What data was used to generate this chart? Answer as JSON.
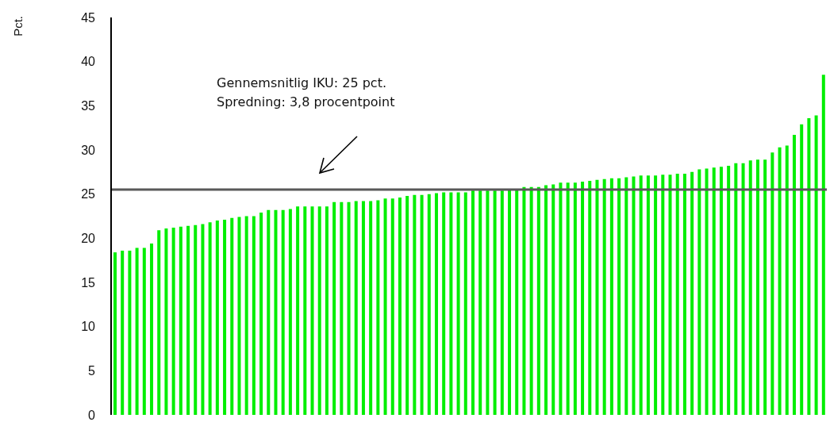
{
  "chart_data": {
    "type": "bar",
    "ylabel": "Pct.",
    "categories": [
      null,
      null,
      null,
      null,
      null,
      null,
      null,
      null,
      null,
      null,
      null,
      null,
      null,
      null,
      null,
      null,
      null,
      null,
      null,
      null,
      null,
      null,
      null,
      null,
      null,
      null,
      null,
      null,
      null,
      null,
      null,
      null,
      null,
      null,
      null,
      null,
      null,
      null,
      null,
      null,
      null,
      null,
      null,
      null,
      null,
      null,
      null,
      null,
      null,
      null,
      null,
      null,
      null,
      null,
      null,
      null,
      null,
      null,
      null,
      null,
      null,
      null,
      null,
      null,
      null,
      null,
      null,
      null,
      null,
      null,
      null,
      null,
      null,
      null,
      null,
      null,
      null,
      null,
      null,
      null,
      null,
      null,
      null,
      null,
      null,
      null,
      null,
      null,
      null,
      null,
      null,
      null,
      null,
      null,
      null,
      null,
      null,
      null
    ],
    "values": [
      18.4,
      18.6,
      18.6,
      18.9,
      18.9,
      19.4,
      20.9,
      21.1,
      21.2,
      21.3,
      21.4,
      21.5,
      21.6,
      21.8,
      22.0,
      22.1,
      22.3,
      22.4,
      22.5,
      22.5,
      22.9,
      23.2,
      23.2,
      23.2,
      23.3,
      23.6,
      23.6,
      23.6,
      23.6,
      23.6,
      24.1,
      24.1,
      24.1,
      24.2,
      24.2,
      24.2,
      24.3,
      24.5,
      24.5,
      24.6,
      24.8,
      24.9,
      24.9,
      25.0,
      25.1,
      25.2,
      25.2,
      25.2,
      25.2,
      25.4,
      25.4,
      25.4,
      25.4,
      25.4,
      25.6,
      25.6,
      25.8,
      25.8,
      25.8,
      26.0,
      26.1,
      26.3,
      26.3,
      26.3,
      26.4,
      26.5,
      26.6,
      26.7,
      26.8,
      26.8,
      26.9,
      27.0,
      27.1,
      27.1,
      27.1,
      27.2,
      27.2,
      27.3,
      27.3,
      27.5,
      27.8,
      27.9,
      28.0,
      28.1,
      28.2,
      28.5,
      28.5,
      28.8,
      28.9,
      28.9,
      29.7,
      30.3,
      30.5,
      31.7,
      32.9,
      33.6,
      33.9,
      38.5
    ],
    "color": "#00ee00",
    "ylim": [
      0,
      45
    ],
    "yticks": [
      0,
      5,
      10,
      15,
      20,
      25,
      30,
      35,
      40,
      45
    ],
    "tick_labels": "y",
    "ref_lines": [
      {
        "axis": "y",
        "value": 25.5,
        "color": "#595959"
      }
    ],
    "annotations": [
      "Gennemsnitlig IKU: 25 pct.",
      "Spredning: 3,8 procentpoint"
    ]
  }
}
